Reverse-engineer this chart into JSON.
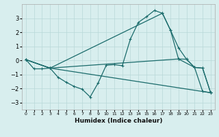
{
  "xlabel": "Humidex (Indice chaleur)",
  "background_color": "#d8eeee",
  "grid_color": "#b8d8d8",
  "line_color": "#1a6b6b",
  "xlim": [
    -0.5,
    23.5
  ],
  "ylim": [
    -3.5,
    4.0
  ],
  "yticks": [
    -3,
    -2,
    -1,
    0,
    1,
    2,
    3
  ],
  "xticks": [
    0,
    1,
    2,
    3,
    4,
    5,
    6,
    7,
    8,
    9,
    10,
    11,
    12,
    13,
    14,
    15,
    16,
    17,
    18,
    19,
    20,
    21,
    22,
    23
  ],
  "lines": [
    {
      "x": [
        0,
        1,
        2,
        3,
        4,
        5,
        6,
        7,
        8,
        9,
        10,
        11,
        12,
        13,
        14,
        15,
        16,
        17,
        18,
        19,
        20,
        21,
        22,
        23
      ],
      "y": [
        0.05,
        -0.6,
        -0.6,
        -0.55,
        -1.2,
        -1.55,
        -1.85,
        -2.05,
        -2.6,
        -1.6,
        -0.35,
        -0.3,
        -0.38,
        1.5,
        2.7,
        3.1,
        3.55,
        3.35,
        2.15,
        0.1,
        0.08,
        -0.5,
        -2.2,
        -2.3
      ]
    },
    {
      "x": [
        0,
        3,
        23
      ],
      "y": [
        0.05,
        -0.55,
        -2.3
      ]
    },
    {
      "x": [
        0,
        3,
        19,
        21,
        22,
        23
      ],
      "y": [
        0.05,
        -0.55,
        0.1,
        -0.5,
        -0.55,
        -2.3
      ]
    },
    {
      "x": [
        0,
        3,
        17,
        18,
        19,
        20,
        21,
        22,
        23
      ],
      "y": [
        0.05,
        -0.55,
        3.35,
        2.15,
        0.9,
        0.08,
        -0.5,
        -0.55,
        -2.3
      ]
    }
  ]
}
